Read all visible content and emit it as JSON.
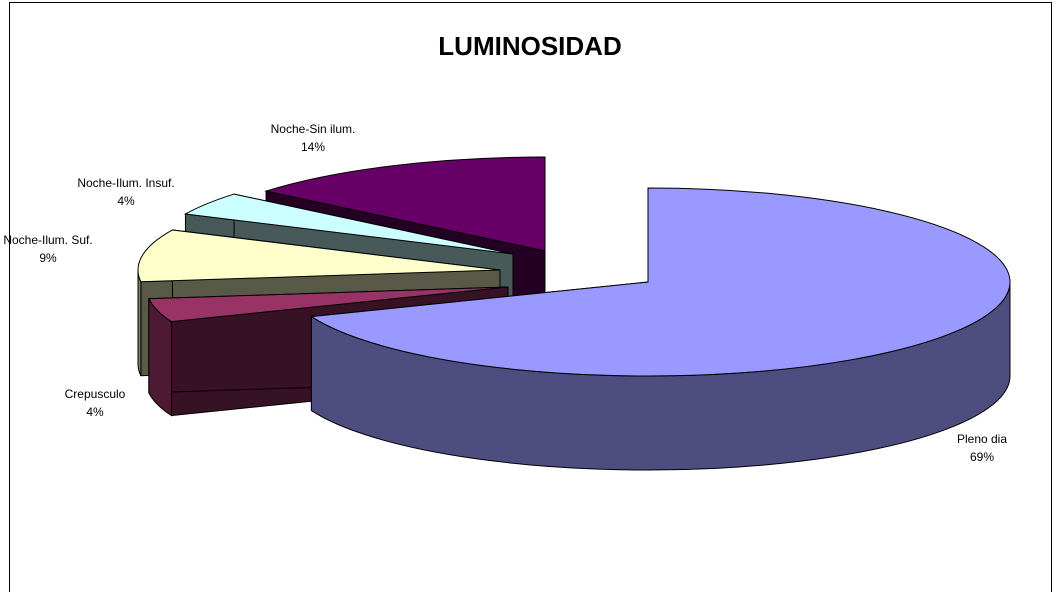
{
  "chart_data": {
    "type": "pie",
    "title": "LUMINOSIDAD",
    "categories": [
      "Pleno dia",
      "Crepusculo",
      "Noche-Ilum. Suf.",
      "Noche-Ilum. Insuf.",
      "Noche-Sin ilum."
    ],
    "values": [
      69,
      4,
      9,
      4,
      14
    ],
    "value_labels": [
      "69%",
      "4%",
      "9%",
      "4%",
      "14%"
    ],
    "colors": [
      "#9999ff",
      "#993366",
      "#ffffcc",
      "#ccffff",
      "#660066"
    ],
    "three_d": true
  }
}
